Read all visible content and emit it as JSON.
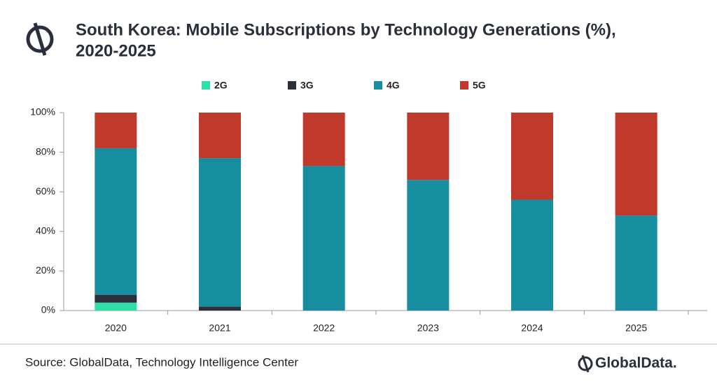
{
  "chart_data": {
    "type": "stacked_bar",
    "title": "South Korea: Mobile Subscriptions by Technology Generations (%),",
    "subtitle": "2020-2025",
    "categories": [
      "2020",
      "2021",
      "2022",
      "2023",
      "2024",
      "2025"
    ],
    "series": [
      {
        "name": "2G",
        "color": "#2ee0a8",
        "values": [
          4,
          0,
          0,
          0,
          0,
          0
        ]
      },
      {
        "name": "3G",
        "color": "#2b2e3b",
        "values": [
          4,
          2,
          0,
          0,
          0,
          0
        ]
      },
      {
        "name": "4G",
        "color": "#168e9f",
        "values": [
          74,
          75,
          73,
          66,
          56,
          48
        ]
      },
      {
        "name": "5G",
        "color": "#c0392b",
        "values": [
          18,
          23,
          27,
          34,
          44,
          52
        ]
      }
    ],
    "ylim": [
      0,
      100
    ],
    "yticks": [
      {
        "value": 0,
        "label": "0%"
      },
      {
        "value": 20,
        "label": "20%"
      },
      {
        "value": 40,
        "label": "40%"
      },
      {
        "value": 60,
        "label": "60%"
      },
      {
        "value": 80,
        "label": "80%"
      },
      {
        "value": 100,
        "label": "100%"
      }
    ],
    "grid": false,
    "legend": "top",
    "source": "Source: GlobalData, Technology Intelligence Center",
    "brand": "GlobalData."
  }
}
